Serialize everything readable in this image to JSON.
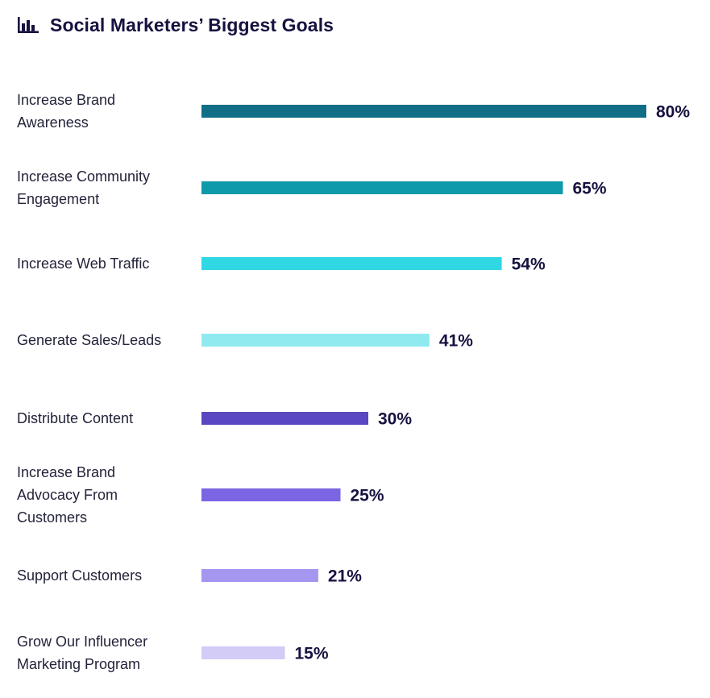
{
  "header": {
    "title": "Social Marketers’ Biggest Goals",
    "icon": "bar-chart-icon"
  },
  "chart_data": {
    "type": "bar",
    "orientation": "horizontal",
    "title": "Social Marketers’ Biggest Goals",
    "xlabel": "",
    "ylabel": "",
    "xlim": [
      0,
      80
    ],
    "grid": false,
    "legend": "none",
    "value_suffix": "%",
    "categories": [
      "Increase Brand Awareness",
      "Increase Community Engagement",
      "Increase Web Traffic",
      "Generate Sales/Leads",
      "Distribute Content",
      "Increase Brand Advocacy From Customers",
      "Support Customers",
      "Grow Our Influencer Marketing Program"
    ],
    "values": [
      80,
      65,
      54,
      41,
      30,
      25,
      21,
      15
    ],
    "value_labels": [
      "80%",
      "65%",
      "54%",
      "41%",
      "30%",
      "25%",
      "21%",
      "15%"
    ],
    "colors": [
      "#116e86",
      "#0f9aaa",
      "#2fd8e2",
      "#8feaf0",
      "#5a46c0",
      "#7b65e3",
      "#a596f0",
      "#d3ccf7"
    ]
  }
}
